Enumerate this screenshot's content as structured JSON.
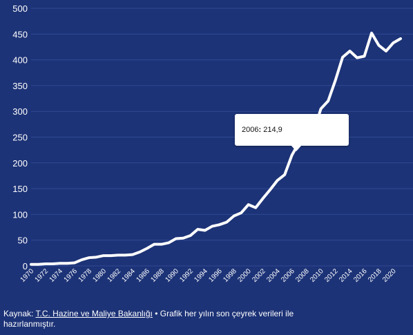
{
  "chart_data": {
    "type": "line",
    "title": "",
    "xlabel": "",
    "ylabel": "",
    "ylim": [
      0,
      500
    ],
    "yticks": [
      0,
      50,
      100,
      150,
      200,
      250,
      300,
      350,
      400,
      450,
      500
    ],
    "xticks": [
      "1970",
      "1972",
      "1974",
      "1976",
      "1978",
      "1980",
      "1982",
      "1984",
      "1986",
      "1988",
      "1990",
      "1992",
      "1994",
      "1996",
      "1998",
      "2000",
      "2002",
      "2004",
      "2006",
      "2008",
      "2010",
      "2012",
      "2014",
      "2016",
      "2018",
      "2020"
    ],
    "grid": true,
    "line_color": "#ffffff",
    "background": "#1d3377",
    "series": [
      {
        "x": [
          1970,
          1971,
          1972,
          1973,
          1974,
          1975,
          1976,
          1977,
          1978,
          1979,
          1980,
          1981,
          1982,
          1983,
          1984,
          1985,
          1986,
          1987,
          1988,
          1989,
          1990,
          1991,
          1992,
          1993,
          1994,
          1995,
          1996,
          1997,
          1998,
          1999,
          2000,
          2001,
          2002,
          2003,
          2004,
          2005,
          2006,
          2007,
          2008,
          2009,
          2010,
          2011,
          2012,
          2013,
          2014,
          2015,
          2016,
          2017,
          2018,
          2019,
          2020,
          2021
        ],
        "values": [
          3,
          3,
          4,
          4,
          5,
          5,
          6,
          12,
          16,
          17,
          20,
          20,
          21,
          21,
          22,
          27,
          34,
          42,
          42,
          45,
          53,
          54,
          59,
          71,
          69,
          77,
          80,
          85,
          97,
          103,
          119,
          113,
          131,
          148,
          166,
          177,
          214.9,
          240,
          255,
          260,
          305,
          320,
          360,
          405,
          417,
          404,
          407,
          452,
          428,
          417,
          433,
          441
        ]
      }
    ]
  },
  "tooltip": {
    "label": "2006",
    "value": "214,9"
  },
  "footer": {
    "source_prefix": "Kaynak:",
    "source_name": "T.C. Hazine ve Maliye Bakanlığı",
    "note": "• Grafik her yılın son çeyrek verileri ile hazırlanmıştır."
  }
}
